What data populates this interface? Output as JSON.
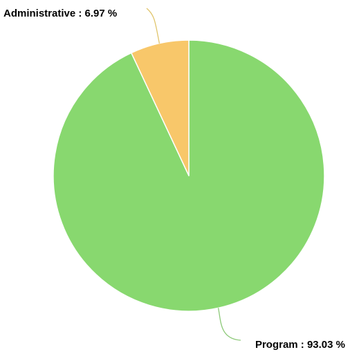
{
  "chart_data": {
    "type": "pie",
    "title": "",
    "slices": [
      {
        "name": "Program",
        "value": 93.03,
        "label": "Program : 93.03 %",
        "color": "#88d86f"
      },
      {
        "name": "Administrative",
        "value": 6.97,
        "label": "Administrative : 6.97 %",
        "color": "#f8c76a"
      }
    ],
    "start_angle_deg": 0,
    "direction": "clockwise",
    "slice_border_color": "#ffffff",
    "connector_colors": [
      "#8cc978",
      "#e0c46a"
    ],
    "legend": "none"
  }
}
